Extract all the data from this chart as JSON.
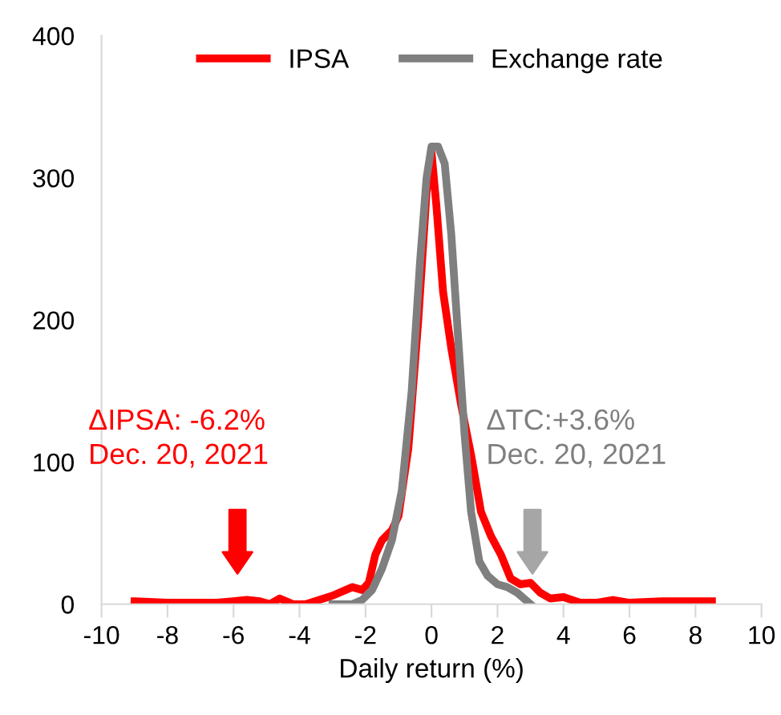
{
  "chart_data": {
    "type": "line",
    "xlabel": "Daily return (%)",
    "xlim": [
      -10,
      10
    ],
    "xticks": [
      -10,
      -8,
      -6,
      -4,
      -2,
      0,
      2,
      4,
      6,
      8,
      10
    ],
    "ylim": [
      0,
      400
    ],
    "yticks": [
      0,
      100,
      200,
      300,
      400
    ],
    "grid": false,
    "legend": "top",
    "marker": "none",
    "line_style": "solid",
    "series": [
      {
        "name": "IPSA",
        "color": "#ff0000",
        "x": [
          -9,
          -8,
          -7,
          -6.5,
          -6,
          -5.6,
          -5.2,
          -4.9,
          -4.6,
          -4.2,
          -3.8,
          -3.4,
          -3,
          -2.6,
          -2.4,
          -2.1,
          -1.9,
          -1.7,
          -1.5,
          -1.2,
          -1,
          -0.7,
          -0.4,
          -0.15,
          0,
          0.15,
          0.35,
          0.6,
          0.9,
          1.2,
          1.5,
          1.8,
          2.1,
          2.4,
          2.7,
          3,
          3.3,
          3.6,
          4,
          4.5,
          5,
          5.5,
          6,
          7,
          8.5
        ],
        "values": [
          2,
          1,
          1,
          1,
          2,
          3,
          2,
          0,
          4,
          0,
          0,
          3,
          6,
          10,
          12,
          10,
          15,
          35,
          45,
          52,
          62,
          110,
          200,
          290,
          318,
          280,
          220,
          180,
          140,
          105,
          65,
          48,
          35,
          18,
          14,
          15,
          8,
          4,
          5,
          1,
          1,
          3,
          1,
          2,
          2
        ]
      },
      {
        "name": "Exchange rate",
        "color": "#7f7f7f",
        "x": [
          -3,
          -2.4,
          -2.1,
          -1.8,
          -1.5,
          -1.2,
          -0.9,
          -0.6,
          -0.35,
          -0.15,
          0,
          0.2,
          0.4,
          0.6,
          0.8,
          1,
          1.2,
          1.45,
          1.7,
          2,
          2.3,
          2.6,
          3
        ],
        "values": [
          0,
          0,
          3,
          10,
          25,
          45,
          80,
          150,
          240,
          300,
          322,
          322,
          310,
          260,
          190,
          120,
          65,
          30,
          20,
          14,
          12,
          8,
          0
        ]
      }
    ],
    "annotations": [
      "ΔIPSA: -6.2%\nDec. 20, 2021",
      "ΔTC:+3.6%\nDec. 20, 2021"
    ]
  }
}
